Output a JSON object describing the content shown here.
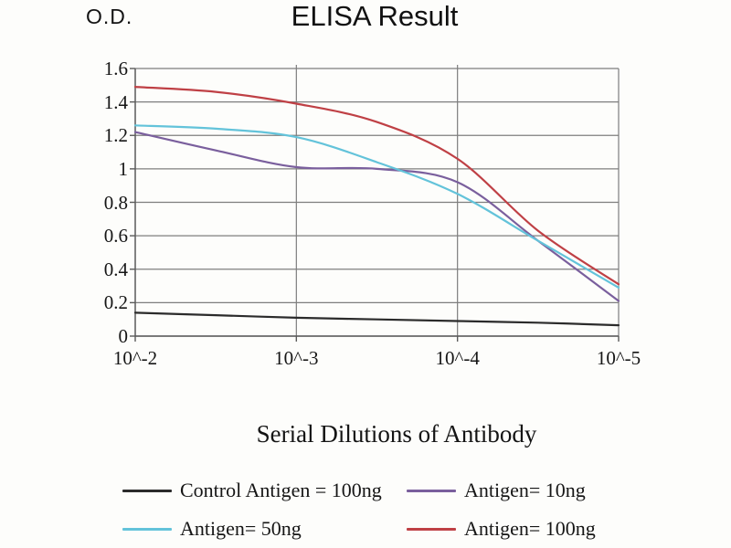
{
  "chart_data": {
    "type": "line",
    "title": "ELISA Result",
    "ylabel": "O.D.",
    "xlabel": "Serial Dilutions of Antibody",
    "x_tick_labels": [
      "10^-2",
      "10^-3",
      "10^-4",
      "10^-5"
    ],
    "y_ticks": [
      "1.6",
      "1.4",
      "1.2",
      "1",
      "0.8",
      "0.6",
      "0.4",
      "0.2",
      "0"
    ],
    "ylim": [
      0,
      1.6
    ],
    "grid": true,
    "legend_position": "bottom",
    "x_log_units": [
      0,
      0.5,
      1,
      1.5,
      2,
      2.5,
      3
    ],
    "series": [
      {
        "name": "Control Antigen = 100ng",
        "color": "#2b2b2b",
        "values": [
          0.14,
          0.125,
          0.11,
          0.1,
          0.09,
          0.08,
          0.065
        ]
      },
      {
        "name": "Antigen= 10ng",
        "color": "#7a5f9d",
        "values": [
          1.22,
          1.11,
          1.01,
          1.0,
          0.92,
          0.57,
          0.21
        ]
      },
      {
        "name": "Antigen= 50ng",
        "color": "#63c3da",
        "values": [
          1.26,
          1.24,
          1.19,
          1.04,
          0.85,
          0.57,
          0.29
        ]
      },
      {
        "name": "Antigen= 100ng",
        "color": "#bf4045",
        "values": [
          1.49,
          1.46,
          1.39,
          1.28,
          1.06,
          0.63,
          0.31
        ]
      }
    ],
    "colors": {
      "grid": "#7e7e7e",
      "axis": "#5a5a5a",
      "text": "#1a1a1a"
    }
  }
}
